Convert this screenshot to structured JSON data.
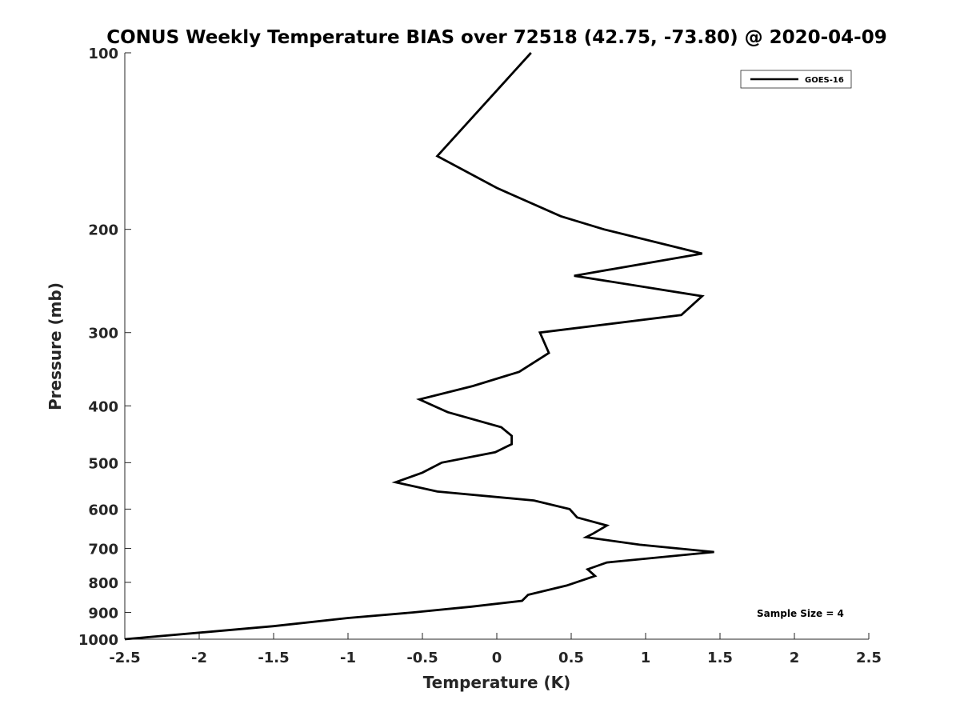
{
  "chart_data": {
    "type": "line",
    "title": "CONUS Weekly Temperature BIAS over 72518 (42.75, -73.80) @ 2020-04-09",
    "xlabel": "Temperature (K)",
    "ylabel": "Pressure (mb)",
    "xlim": [
      -2.5,
      2.5
    ],
    "ylim": [
      1000,
      100
    ],
    "yscale": "log",
    "y_inverted": true,
    "xticks": [
      -2.5,
      -2,
      -1.5,
      -1,
      -0.5,
      0,
      0.5,
      1,
      1.5,
      2,
      2.5
    ],
    "xtick_labels": [
      "-2.5",
      "-2",
      "-1.5",
      "-1",
      "-0.5",
      "0",
      "0.5",
      "1",
      "1.5",
      "2",
      "2.5"
    ],
    "yticks": [
      100,
      200,
      300,
      400,
      500,
      600,
      700,
      800,
      900,
      1000
    ],
    "ytick_labels": [
      "100",
      "200",
      "300",
      "400",
      "500",
      "600",
      "700",
      "800",
      "900",
      "1000"
    ],
    "grid": false,
    "legend_position": "top-right",
    "series": [
      {
        "name": "GOES-16",
        "color": "#000000",
        "x": [
          0.23,
          -0.4,
          0.0,
          0.43,
          0.72,
          1.38,
          0.52,
          1.38,
          1.24,
          0.29,
          0.35,
          0.15,
          -0.16,
          -0.52,
          -0.33,
          0.03,
          0.1,
          0.1,
          -0.01,
          -0.37,
          -0.5,
          -0.68,
          -0.4,
          0.25,
          0.49,
          0.54,
          0.74,
          0.65,
          0.6,
          0.96,
          1.46,
          0.74,
          0.61,
          0.66,
          0.47,
          0.21,
          0.17,
          -0.17,
          -0.56,
          -1.0,
          -1.5,
          -2.5
        ],
        "y": [
          100,
          150,
          170,
          190,
          200,
          220,
          240,
          260,
          280,
          300,
          325,
          350,
          370,
          390,
          410,
          435,
          450,
          465,
          480,
          500,
          520,
          540,
          560,
          580,
          600,
          620,
          640,
          660,
          670,
          690,
          710,
          740,
          760,
          780,
          810,
          840,
          860,
          880,
          900,
          920,
          950,
          1000
        ]
      }
    ],
    "annotations": [
      {
        "text": "Sample Size = 4",
        "position": "bottom-right"
      }
    ]
  }
}
